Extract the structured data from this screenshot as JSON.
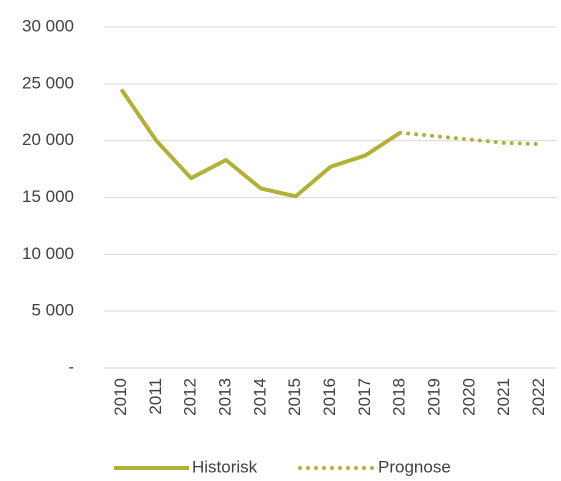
{
  "chart_data": {
    "type": "line",
    "categories": [
      "2010",
      "2011",
      "2012",
      "2013",
      "2014",
      "2015",
      "2016",
      "2017",
      "2018",
      "2019",
      "2020",
      "2021",
      "2022"
    ],
    "series": [
      {
        "name": "Historisk",
        "color": "#b3b03a",
        "style": "solid",
        "values": [
          24500,
          20000,
          16700,
          18300,
          15800,
          15100,
          17700,
          18700,
          20700,
          null,
          null,
          null,
          null
        ]
      },
      {
        "name": "Prognose",
        "color": "#b3b03a",
        "style": "dotted",
        "values": [
          null,
          null,
          null,
          null,
          null,
          null,
          null,
          null,
          20700,
          20400,
          20100,
          19800,
          19700
        ]
      }
    ],
    "ylim": [
      0,
      30000
    ],
    "yticks": [
      {
        "value": 0,
        "label": "-"
      },
      {
        "value": 5000,
        "label": "5 000"
      },
      {
        "value": 10000,
        "label": "10 000"
      },
      {
        "value": 15000,
        "label": "15 000"
      },
      {
        "value": 20000,
        "label": "20 000"
      },
      {
        "value": 25000,
        "label": "25 000"
      },
      {
        "value": 30000,
        "label": "30 000"
      }
    ],
    "grid": true,
    "legend": "bottom"
  }
}
